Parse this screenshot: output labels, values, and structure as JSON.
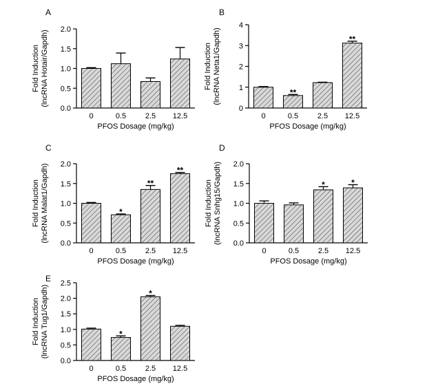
{
  "figure": {
    "style": {
      "bar_fill": "#d9d9d9",
      "hatch_color": "#5a5a5a",
      "axis_color": "#000000",
      "background": "#ffffff"
    }
  },
  "chart_data": [
    {
      "panel": "A",
      "type": "bar",
      "categories": [
        "0",
        "0.5",
        "2.5",
        "12.5"
      ],
      "values": [
        1.0,
        1.12,
        0.67,
        1.24
      ],
      "errors": [
        0.02,
        0.27,
        0.09,
        0.29
      ],
      "significance": [
        "",
        "",
        "",
        ""
      ],
      "ylabel_lines": [
        "Fold Induction",
        "(lncRNA Hotair/Gapdh)"
      ],
      "xlabel": "PFOS Dosage (mg/kg)",
      "ylim": [
        0,
        2.0
      ],
      "yticks": [
        "0.0",
        "0.5",
        "1.0",
        "1.5",
        "2.0"
      ],
      "grid": false
    },
    {
      "panel": "B",
      "type": "bar",
      "categories": [
        "0",
        "0.5",
        "2.5",
        "12.5"
      ],
      "values": [
        1.0,
        0.6,
        1.22,
        3.12
      ],
      "errors": [
        0.03,
        0.05,
        0.02,
        0.09
      ],
      "significance": [
        "",
        "**",
        "",
        "**"
      ],
      "ylabel_lines": [
        "Fold Induction",
        "(lncRNA Neta1/Gapdh)"
      ],
      "xlabel": "PFOS Dosage (mg/kg)",
      "ylim": [
        0,
        4
      ],
      "yticks": [
        "0",
        "1",
        "2",
        "3",
        "4"
      ],
      "grid": false
    },
    {
      "panel": "C",
      "type": "bar",
      "categories": [
        "0",
        "0.5",
        "2.5",
        "12.5"
      ],
      "values": [
        1.0,
        0.71,
        1.35,
        1.75
      ],
      "errors": [
        0.02,
        0.02,
        0.1,
        0.03
      ],
      "significance": [
        "",
        "*",
        "**",
        "**"
      ],
      "ylabel_lines": [
        "Fold Induction",
        "(lncRNA Malat1/Gapdh)"
      ],
      "xlabel": "PFOS Dosage (mg/kg)",
      "ylim": [
        0,
        2.0
      ],
      "yticks": [
        "0.0",
        "0.5",
        "1.0",
        "1.5",
        "2.0"
      ],
      "grid": false
    },
    {
      "panel": "D",
      "type": "bar",
      "categories": [
        "0",
        "0.5",
        "2.5",
        "12.5"
      ],
      "values": [
        1.0,
        0.96,
        1.34,
        1.39
      ],
      "errors": [
        0.06,
        0.05,
        0.08,
        0.08
      ],
      "significance": [
        "",
        "",
        "*",
        "*"
      ],
      "ylabel_lines": [
        "Fold Induction",
        "(lncRNA Snhg15/Gapdh)"
      ],
      "xlabel": "PFOS Dosage (mg/kg)",
      "ylim": [
        0,
        2.0
      ],
      "yticks": [
        "0.0",
        "0.5",
        "1.0",
        "1.5",
        "2.0"
      ],
      "grid": false
    },
    {
      "panel": "E",
      "type": "bar",
      "categories": [
        "0",
        "0.5",
        "2.5",
        "12.5"
      ],
      "values": [
        1.01,
        0.74,
        2.05,
        1.1
      ],
      "errors": [
        0.03,
        0.05,
        0.04,
        0.03
      ],
      "significance": [
        "",
        "*",
        "*",
        ""
      ],
      "ylabel_lines": [
        "Fold Induction",
        "(lncRNA Tug1/Gapdh)"
      ],
      "xlabel": "PFOS Dosage (mg/kg)",
      "ylim": [
        0,
        2.5
      ],
      "yticks": [
        "0.0",
        "0.5",
        "1.0",
        "1.5",
        "2.0",
        "2.5"
      ],
      "grid": false
    }
  ]
}
